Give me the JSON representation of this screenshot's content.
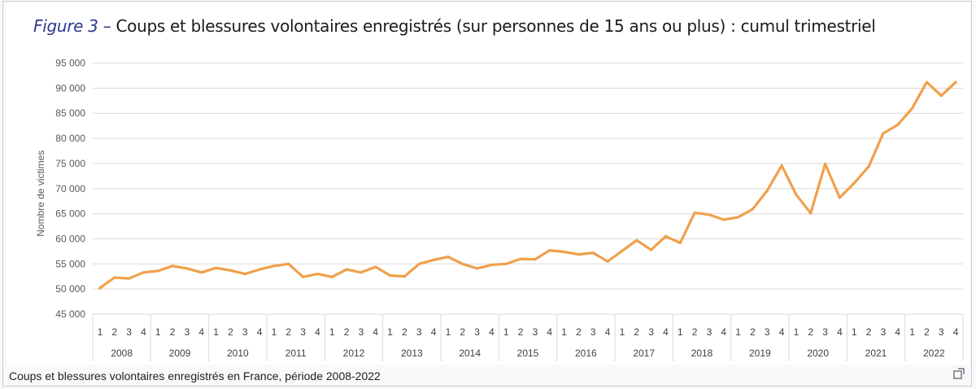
{
  "figure": {
    "title_prefix": "Figure 3 –",
    "title_text": "Coups et blessures volontaires enregistrés (sur personnes de 15 ans ou plus) : cumul trimestriel"
  },
  "caption": "Coups et blessures volontaires enregistrés en France, période 2008-2022",
  "expand_icon": "enlarge-icon",
  "chart_data": {
    "type": "line",
    "ylabel": "Nombre de victimes",
    "xlabel": "",
    "ylim": [
      45000,
      95000
    ],
    "yticks": [
      45000,
      50000,
      55000,
      60000,
      65000,
      70000,
      75000,
      80000,
      85000,
      90000,
      95000
    ],
    "ytick_labels": [
      "45 000",
      "50 000",
      "55 000",
      "60 000",
      "65 000",
      "70 000",
      "75 000",
      "80 000",
      "85 000",
      "90 000",
      "95 000"
    ],
    "grid": true,
    "line_color": "#f0a04b",
    "years": [
      "2008",
      "2009",
      "2010",
      "2011",
      "2012",
      "2013",
      "2014",
      "2015",
      "2016",
      "2017",
      "2018",
      "2019",
      "2020",
      "2021",
      "2022"
    ],
    "quarters": [
      "1",
      "2",
      "3",
      "4"
    ],
    "series": [
      {
        "values": [
          50200,
          52300,
          52100,
          53300,
          53600,
          54600,
          54100,
          53300,
          54200,
          53700,
          53000,
          53900,
          54600,
          55000,
          52400,
          53000,
          52400,
          53900,
          53300,
          54400,
          52700,
          52500,
          55000,
          55800,
          56400,
          55000,
          54100,
          54800,
          55000,
          56000,
          55900,
          57700,
          57400,
          56900,
          57200,
          55500,
          57600,
          59700,
          57800,
          60500,
          59200,
          65200,
          64800,
          63800,
          64300,
          65900,
          69600,
          74600,
          68800,
          65100,
          74900,
          68200,
          71100,
          74400,
          81000,
          82700,
          86000,
          91200,
          88500,
          91200
        ]
      }
    ]
  }
}
